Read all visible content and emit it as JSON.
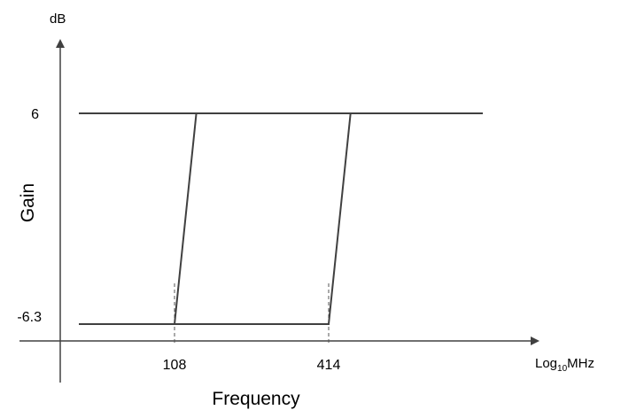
{
  "chart_data": {
    "type": "line",
    "title": "",
    "xlabel": "Frequency",
    "ylabel": "Gain",
    "y_unit": "dB",
    "x_unit": {
      "base": "Log",
      "subscript": "10",
      "suffix": "MHz"
    },
    "y_ticks": [
      "6",
      "-6.3"
    ],
    "x_ticks": [
      "108",
      "414"
    ],
    "series": [
      {
        "x": [
          108,
          130.6
        ],
        "y": [
          -6.3,
          6
        ]
      },
      {
        "x": [
          414,
          501
        ],
        "y": [
          -6.3,
          6
        ]
      }
    ],
    "lower_gain_level": -6.3,
    "upper_gain_level": 6,
    "grid": false,
    "legend": "none"
  }
}
